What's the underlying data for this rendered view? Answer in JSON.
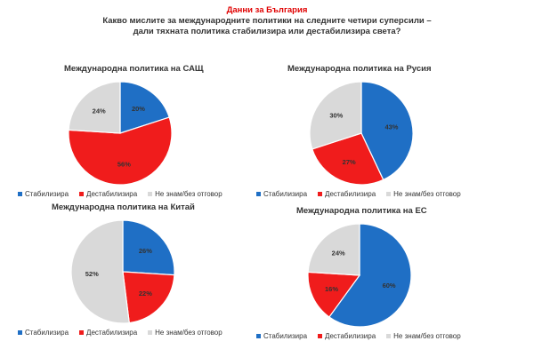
{
  "header": {
    "subtitle": "Данни за България",
    "question_line1": "Какво мислите за международните политики на следните четири суперсили –",
    "question_line2": "дали тяхната политика стабилизира или дестабилизира света?"
  },
  "colors": {
    "stabilize": "#1f6fc5",
    "destabilize": "#f01c1c",
    "dontknow": "#d9d9d9"
  },
  "chart_data": [
    {
      "type": "pie",
      "title": "Международна политика на САЩ",
      "categories": [
        "Стабилизира",
        "Дестабилизира",
        "Не знам/без отговор"
      ],
      "values": [
        20,
        56,
        24
      ],
      "value_labels": [
        "20%",
        "56%",
        "24%"
      ]
    },
    {
      "type": "pie",
      "title": "Международна политика на Русия",
      "categories": [
        "Стабилизира",
        "Дестабилизира",
        "Не знам/без отговор"
      ],
      "values": [
        43,
        27,
        30
      ],
      "value_labels": [
        "43%",
        "27%",
        "30%"
      ]
    },
    {
      "type": "pie",
      "title": "Международна политика на Китай",
      "categories": [
        "Стабилизира",
        "Дестабилизира",
        "Не знам/без отговор"
      ],
      "values": [
        26,
        22,
        52
      ],
      "value_labels": [
        "26%",
        "22%",
        "52%"
      ]
    },
    {
      "type": "pie",
      "title": "Международна политика на ЕС",
      "categories": [
        "Стабилизира",
        "Дестабилизира",
        "Не знам/без отговор"
      ],
      "values": [
        60,
        16,
        24
      ],
      "value_labels": [
        "60%",
        "16%",
        "24%"
      ]
    }
  ]
}
